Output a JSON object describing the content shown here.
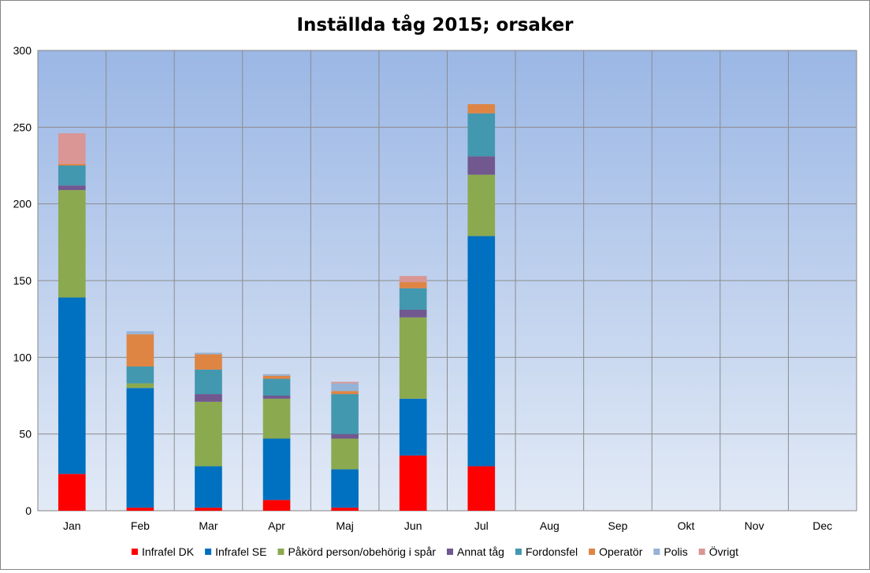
{
  "chart_data": {
    "type": "bar",
    "stacked": true,
    "title": "Inställda tåg 2015; orsaker",
    "xlabel": "",
    "ylabel": "",
    "ylim": [
      0,
      300
    ],
    "yticks": [
      0,
      50,
      100,
      150,
      200,
      250,
      300
    ],
    "grid": true,
    "legend_position": "bottom",
    "categories": [
      "Jan",
      "Feb",
      "Mar",
      "Apr",
      "Maj",
      "Jun",
      "Jul",
      "Aug",
      "Sep",
      "Okt",
      "Nov",
      "Dec"
    ],
    "series": [
      {
        "name": "Infrafel DK",
        "color": "#FF0000",
        "values": [
          24,
          2,
          2,
          7,
          2,
          36,
          29,
          0,
          0,
          0,
          0,
          0
        ]
      },
      {
        "name": "Infrafel SE",
        "color": "#0070C0",
        "values": [
          115,
          78,
          27,
          40,
          25,
          37,
          150,
          0,
          0,
          0,
          0,
          0
        ]
      },
      {
        "name": "Påkörd person/obehörig i spår",
        "color": "#8BA94F",
        "values": [
          70,
          3,
          42,
          26,
          20,
          53,
          40,
          0,
          0,
          0,
          0,
          0
        ]
      },
      {
        "name": "Annat tåg",
        "color": "#71588F",
        "values": [
          3,
          0,
          5,
          2,
          3,
          5,
          12,
          0,
          0,
          0,
          0,
          0
        ]
      },
      {
        "name": "Fordonsfel",
        "color": "#4298AF",
        "values": [
          13,
          11,
          16,
          11,
          26,
          14,
          28,
          0,
          0,
          0,
          0,
          0
        ]
      },
      {
        "name": "Operatör",
        "color": "#DE8544",
        "values": [
          1,
          21,
          10,
          2,
          2,
          4,
          6,
          0,
          0,
          0,
          0,
          0
        ]
      },
      {
        "name": "Polis",
        "color": "#95B3D7",
        "values": [
          0,
          2,
          1,
          1,
          5,
          0,
          0,
          0,
          0,
          0,
          0,
          0
        ]
      },
      {
        "name": "Övrigt",
        "color": "#D99694",
        "values": [
          20,
          0,
          0,
          0,
          1,
          4,
          0,
          0,
          0,
          0,
          0,
          0
        ]
      }
    ]
  }
}
